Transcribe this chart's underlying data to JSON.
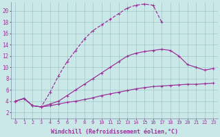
{
  "background_color": "#cbe8e8",
  "grid_color": "#a0c8c8",
  "line_color": "#993399",
  "markersize": 2.5,
  "linewidth": 0.9,
  "xlabel": "Windchill (Refroidissement éolien,°C)",
  "xlabel_fontsize": 6,
  "xtick_fontsize": 5,
  "ytick_fontsize": 5.5,
  "yticks": [
    2,
    4,
    6,
    8,
    10,
    12,
    14,
    16,
    18,
    20
  ],
  "xticks": [
    0,
    1,
    2,
    3,
    4,
    5,
    6,
    7,
    8,
    9,
    10,
    11,
    12,
    13,
    14,
    15,
    16,
    17,
    18,
    19,
    20,
    21,
    22,
    23
  ],
  "xlim": [
    -0.5,
    23.5
  ],
  "ylim": [
    1.0,
    21.5
  ],
  "curves": [
    {
      "x": [
        0,
        1,
        2,
        3,
        4,
        5,
        6,
        7,
        8,
        9,
        10,
        11,
        12,
        13,
        14,
        15,
        16,
        17
      ],
      "y": [
        4.0,
        4.5,
        3.2,
        3.0,
        5.5,
        8.5,
        11.0,
        13.0,
        15.0,
        16.5,
        17.5,
        18.5,
        19.5,
        20.5,
        21.0,
        21.2,
        21.0,
        18.0
      ],
      "linestyle": "--"
    },
    {
      "x": [
        0,
        1,
        2,
        3,
        4,
        5,
        6,
        7,
        8,
        9,
        10,
        11,
        12,
        13,
        14,
        15,
        16,
        17,
        18,
        19,
        20,
        21,
        22,
        23
      ],
      "y": [
        4.0,
        4.5,
        3.2,
        3.0,
        3.5,
        4.0,
        5.0,
        6.0,
        7.0,
        8.0,
        9.0,
        10.0,
        11.0,
        12.0,
        12.5,
        12.8,
        13.0,
        13.2,
        13.0,
        12.0,
        10.5,
        10.0,
        9.5,
        9.8
      ],
      "linestyle": "-"
    },
    {
      "x": [
        0,
        1,
        2,
        3,
        4,
        5,
        6,
        7,
        8,
        9,
        10,
        11,
        12,
        13,
        14,
        15,
        16,
        17,
        18,
        19,
        20,
        21,
        22,
        23
      ],
      "y": [
        4.0,
        4.5,
        3.2,
        3.0,
        3.2,
        3.5,
        3.8,
        4.0,
        4.3,
        4.6,
        5.0,
        5.3,
        5.6,
        5.9,
        6.2,
        6.4,
        6.6,
        6.7,
        6.8,
        6.9,
        7.0,
        7.0,
        7.1,
        7.2
      ],
      "linestyle": "-"
    }
  ]
}
